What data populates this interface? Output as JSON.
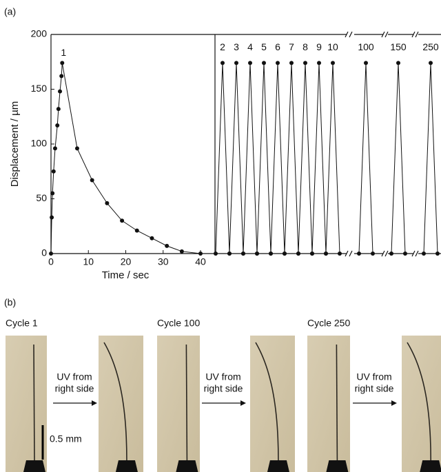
{
  "panel_a_label": "(a)",
  "chart_data": {
    "type": "line",
    "x_label": "Time / sec",
    "y_label": "Displacement / µm",
    "xlim": [
      0,
      44
    ],
    "ylim": [
      0,
      200
    ],
    "xticks": [
      0,
      10,
      20,
      30,
      40
    ],
    "yticks": [
      0,
      50,
      100,
      150,
      200
    ],
    "color": "#111111",
    "series": [
      {
        "label": "1",
        "x": [
          0,
          0.2,
          0.4,
          0.7,
          1.1,
          1.7,
          2,
          2.4,
          2.8,
          3,
          7,
          11,
          15,
          19,
          23,
          27,
          31,
          35,
          40
        ],
        "values": [
          0,
          33,
          55,
          75,
          96,
          117,
          132,
          148,
          162,
          174,
          96,
          67,
          46,
          30,
          21,
          14,
          7,
          2,
          0
        ]
      }
    ],
    "cycles": [
      {
        "label": "2",
        "peak": 174,
        "trough": 0
      },
      {
        "label": "3",
        "peak": 174,
        "trough": 0
      },
      {
        "label": "4",
        "peak": 174,
        "trough": 0
      },
      {
        "label": "5",
        "peak": 174,
        "trough": 0
      },
      {
        "label": "6",
        "peak": 174,
        "trough": 0
      },
      {
        "label": "7",
        "peak": 174,
        "trough": 0
      },
      {
        "label": "8",
        "peak": 174,
        "trough": 0
      },
      {
        "label": "9",
        "peak": 174,
        "trough": 0
      },
      {
        "label": "10",
        "peak": 174,
        "trough": 0
      },
      {
        "label": "100",
        "peak": 174,
        "trough": 0
      },
      {
        "label": "150",
        "peak": 174,
        "trough": 0
      },
      {
        "label": "250",
        "peak": 174,
        "trough": 0
      }
    ]
  },
  "panel_b": {
    "label": "(b)",
    "cycle_labels": [
      "Cycle 1",
      "Cycle 100",
      "Cycle 250"
    ],
    "arrows": [
      [
        "UV from",
        "right side"
      ],
      [
        "UV from",
        "right side"
      ],
      [
        "UV from",
        "right side"
      ]
    ],
    "scale_bar": "0.5 mm"
  }
}
